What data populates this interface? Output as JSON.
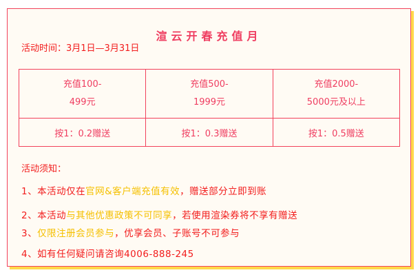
{
  "title": "渲云开春充值月",
  "time": "活动时间：3月1日—3月31日",
  "table": {
    "tiers": [
      {
        "line1": "充值100-",
        "line2": "499元",
        "bonus": "按1：0.2赠送"
      },
      {
        "line1": "充值500-",
        "line2": "1999元",
        "bonus": "按1：0.3赠送"
      },
      {
        "line1": "充值2000-",
        "line2": "5000元及以上",
        "bonus": "按1：0.5赠送"
      }
    ]
  },
  "notice_heading": "活动须知：",
  "rules": [
    {
      "a": "1、本活动仅在",
      "hl": "官网&客户端充值有效",
      "b": "，赠送部分立即到账"
    },
    {
      "a": "2、本活动",
      "hl": "与其他优惠政策不可同享",
      "b": "，若使用渲染券将不享有赠送"
    },
    {
      "a": "3、",
      "hl": "仅限注册会员参与",
      "b": "，优享会员、子账号不可参与"
    },
    {
      "a": "4、如有任何疑问请咨询4006-888-245",
      "hl": "",
      "b": ""
    }
  ],
  "colors": {
    "border": "#f2405a",
    "text_red": "#f21c1c",
    "highlight": "#f5c000",
    "shadow": "#ffd94a"
  }
}
